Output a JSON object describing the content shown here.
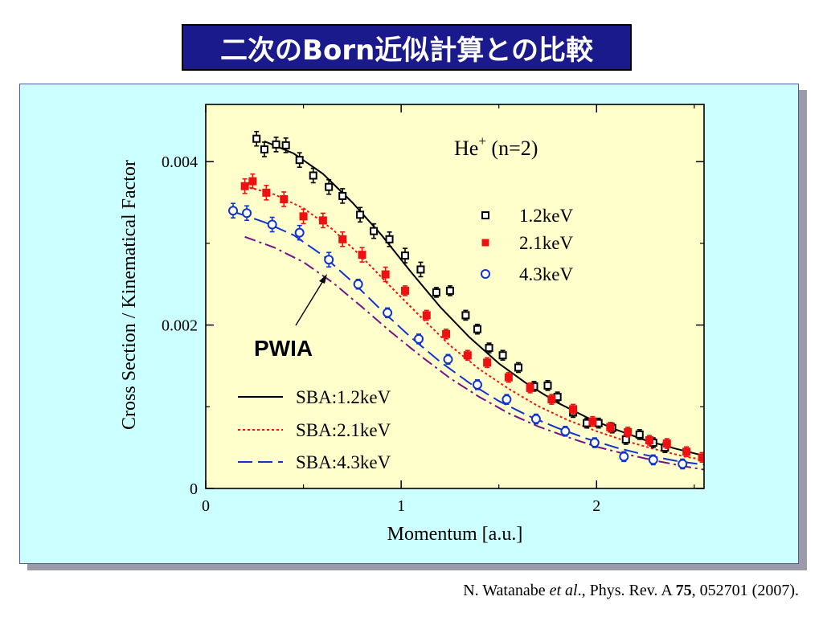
{
  "title": "二次のBorn近似計算との比較",
  "citation": {
    "authors": "N. Watanabe ",
    "etal": "et al",
    "journal": "., Phys. Rev. A ",
    "volume": "75",
    "rest": ", 052701 (2007)."
  },
  "colors": {
    "title_bg": "#1a1a8c",
    "panel_bg": "#ccffff",
    "plot_bg": "#ffffcc",
    "s12": "#000000",
    "s21": "#ee1111",
    "s43": "#1133cc",
    "pwia": "#771188"
  },
  "chart_data": {
    "type": "scatter",
    "title": "He+ (n=2)",
    "title_main": "He",
    "title_sup": "+",
    "title_rest": " (n=2)",
    "xlabel": "Momentum [a.u.]",
    "ylabel": "Cross Section / Kinematical Factor",
    "xlim": [
      0,
      2.55
    ],
    "ylim": [
      0,
      0.0047
    ],
    "xticks": [
      0,
      1,
      2
    ],
    "xtick_labels": [
      "0",
      "1",
      "2"
    ],
    "yticks": [
      0,
      0.002,
      0.004
    ],
    "ytick_labels": [
      "0",
      "0.002",
      "0.004"
    ],
    "grid": false,
    "annotation": "PWIA",
    "legend_points": [
      "1.2keV",
      "2.1keV",
      "4.3keV"
    ],
    "legend_lines": [
      "SBA:1.2keV",
      "SBA:2.1keV",
      "SBA:4.3keV"
    ],
    "points": [
      {
        "name": "1.2keV",
        "marker": "square-open",
        "color": "#000000",
        "x": [
          0.26,
          0.3,
          0.36,
          0.41,
          0.48,
          0.55,
          0.63,
          0.7,
          0.79,
          0.86,
          0.94,
          1.02,
          1.1,
          1.18,
          1.25,
          1.33,
          1.39,
          1.45,
          1.52,
          1.6,
          1.68,
          1.75,
          1.8,
          1.88,
          1.95,
          2.01,
          2.08,
          2.15,
          2.22,
          2.29,
          2.35
        ],
        "y": [
          0.00428,
          0.00415,
          0.00421,
          0.0042,
          0.00402,
          0.00383,
          0.00369,
          0.00358,
          0.00335,
          0.00315,
          0.00305,
          0.00285,
          0.00268,
          0.0024,
          0.00242,
          0.00212,
          0.00195,
          0.00172,
          0.00163,
          0.00148,
          0.00125,
          0.00126,
          0.00112,
          0.00093,
          0.0008,
          0.0008,
          0.00074,
          0.0006,
          0.00066,
          0.00056,
          0.0005
        ]
      },
      {
        "name": "2.1keV",
        "marker": "square-filled",
        "color": "#ee1111",
        "x": [
          0.2,
          0.24,
          0.31,
          0.4,
          0.5,
          0.6,
          0.7,
          0.8,
          0.92,
          1.02,
          1.13,
          1.23,
          1.34,
          1.44,
          1.55,
          1.66,
          1.77,
          1.88,
          1.98,
          2.07,
          2.16,
          2.27,
          2.36,
          2.46,
          2.54
        ],
        "y": [
          0.0037,
          0.00376,
          0.00362,
          0.00354,
          0.00333,
          0.00328,
          0.00305,
          0.00286,
          0.00262,
          0.00242,
          0.00212,
          0.00189,
          0.00163,
          0.00154,
          0.00136,
          0.00123,
          0.00109,
          0.00097,
          0.00082,
          0.00075,
          0.00069,
          0.00059,
          0.00055,
          0.00045,
          0.00038
        ]
      },
      {
        "name": "4.3keV",
        "marker": "circle-open",
        "color": "#1133cc",
        "x": [
          0.14,
          0.21,
          0.34,
          0.48,
          0.63,
          0.78,
          0.93,
          1.09,
          1.24,
          1.39,
          1.54,
          1.69,
          1.84,
          1.99,
          2.14,
          2.29,
          2.44
        ],
        "y": [
          0.0034,
          0.00337,
          0.00323,
          0.00313,
          0.0028,
          0.0025,
          0.00215,
          0.00183,
          0.00158,
          0.00127,
          0.00109,
          0.00085,
          0.0007,
          0.00056,
          0.00039,
          0.00035,
          0.0003
        ]
      }
    ],
    "lines": [
      {
        "name": "SBA:1.2keV",
        "style": "solid",
        "color": "#000000",
        "x": [
          0.3,
          0.45,
          0.6,
          0.75,
          0.9,
          1.05,
          1.2,
          1.35,
          1.5,
          1.65,
          1.8,
          1.95,
          2.1,
          2.25,
          2.4,
          2.55
        ],
        "y": [
          0.00425,
          0.0041,
          0.00385,
          0.0035,
          0.0031,
          0.00265,
          0.00222,
          0.00185,
          0.00153,
          0.00127,
          0.00105,
          0.00087,
          0.00072,
          0.00059,
          0.00049,
          0.0004
        ]
      },
      {
        "name": "SBA:2.1keV",
        "style": "dotted",
        "color": "#ee1111",
        "x": [
          0.2,
          0.35,
          0.5,
          0.65,
          0.8,
          0.95,
          1.1,
          1.25,
          1.4,
          1.55,
          1.7,
          1.85,
          2.0,
          2.15,
          2.3,
          2.45,
          2.55
        ],
        "y": [
          0.0037,
          0.0036,
          0.00343,
          0.00317,
          0.00283,
          0.00246,
          0.0021,
          0.00175,
          0.00146,
          0.00122,
          0.00101,
          0.00084,
          0.0007,
          0.00058,
          0.00048,
          0.00039,
          0.00035
        ]
      },
      {
        "name": "SBA:4.3keV",
        "style": "dashed",
        "color": "#1133cc",
        "x": [
          0.15,
          0.3,
          0.45,
          0.6,
          0.75,
          0.9,
          1.05,
          1.2,
          1.35,
          1.5,
          1.65,
          1.8,
          1.95,
          2.1,
          2.25,
          2.4,
          2.55
        ],
        "y": [
          0.00338,
          0.00326,
          0.0031,
          0.00285,
          0.00253,
          0.00218,
          0.00185,
          0.00155,
          0.00129,
          0.00107,
          0.00089,
          0.00074,
          0.00061,
          0.0005,
          0.00041,
          0.00034,
          0.00029
        ]
      },
      {
        "name": "PWIA",
        "style": "dashdot",
        "color": "#771188",
        "x": [
          0.2,
          0.35,
          0.5,
          0.65,
          0.8,
          0.95,
          1.1,
          1.25,
          1.4,
          1.55,
          1.7,
          1.85,
          2.0,
          2.15,
          2.3,
          2.45,
          2.55
        ],
        "y": [
          0.00308,
          0.00295,
          0.00277,
          0.00252,
          0.00222,
          0.00191,
          0.00162,
          0.00135,
          0.00112,
          0.00092,
          0.00076,
          0.00063,
          0.00051,
          0.00042,
          0.00034,
          0.00027,
          0.00023
        ]
      }
    ]
  }
}
